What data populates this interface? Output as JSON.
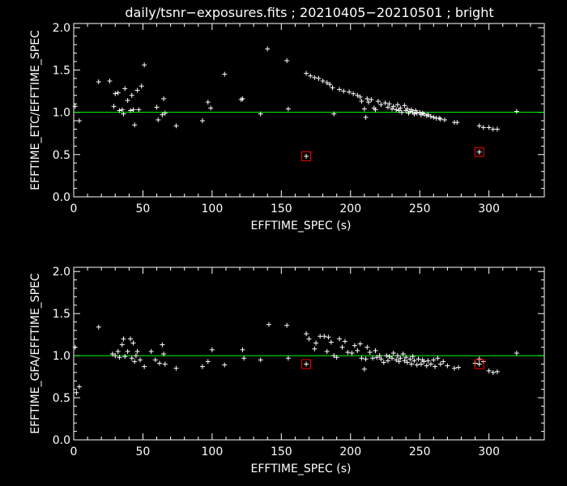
{
  "title": "daily/tsnr−exposures.fits ; 20210405−20210501 ; bright",
  "colors": {
    "background": "#000000",
    "points": "#ffffff",
    "reference_line": "#00ff00",
    "highlight": "#ff0000"
  },
  "chart_data": [
    {
      "type": "scatter",
      "xlabel": "EFFTIME_SPEC (s)",
      "ylabel": "EFFTIME_ETC/EFFTIME_SPEC",
      "xlim": [
        0,
        340
      ],
      "ylim": [
        0,
        2.05
      ],
      "xticks": [
        "0",
        "50",
        "100",
        "150",
        "200",
        "250",
        "300"
      ],
      "yticks": [
        "0.0",
        "0.5",
        "1.0",
        "1.5",
        "2.0"
      ],
      "reference_y": 1.0,
      "points": [
        [
          1,
          1.07
        ],
        [
          4,
          0.9
        ],
        [
          18,
          1.36
        ],
        [
          26,
          1.37
        ],
        [
          29,
          1.07
        ],
        [
          30,
          1.22
        ],
        [
          32,
          1.23
        ],
        [
          33,
          1.02
        ],
        [
          35,
          1.03
        ],
        [
          36,
          0.98
        ],
        [
          37,
          1.28
        ],
        [
          39,
          1.14
        ],
        [
          41,
          1.02
        ],
        [
          42,
          1.2
        ],
        [
          43,
          1.03
        ],
        [
          44,
          0.85
        ],
        [
          46,
          1.26
        ],
        [
          47,
          1.03
        ],
        [
          49,
          1.31
        ],
        [
          51,
          1.56
        ],
        [
          60,
          1.06
        ],
        [
          61,
          0.91
        ],
        [
          64,
          0.97
        ],
        [
          65,
          1.16
        ],
        [
          66,
          0.99
        ],
        [
          74,
          0.84
        ],
        [
          93,
          0.9
        ],
        [
          97,
          1.12
        ],
        [
          99,
          1.05
        ],
        [
          109,
          1.45
        ],
        [
          121,
          1.15
        ],
        [
          122,
          1.16
        ],
        [
          135,
          0.98
        ],
        [
          140,
          1.75
        ],
        [
          154,
          1.61
        ],
        [
          155,
          1.04
        ],
        [
          168,
          1.46
        ],
        [
          171,
          1.43
        ],
        [
          174,
          1.41
        ],
        [
          177,
          1.4
        ],
        [
          180,
          1.37
        ],
        [
          183,
          1.35
        ],
        [
          185,
          1.33
        ],
        [
          187,
          1.29
        ],
        [
          188,
          0.98
        ],
        [
          192,
          1.27
        ],
        [
          195,
          1.25
        ],
        [
          199,
          1.24
        ],
        [
          202,
          1.22
        ],
        [
          205,
          1.2
        ],
        [
          207,
          1.18
        ],
        [
          208,
          1.13
        ],
        [
          210,
          1.04
        ],
        [
          211,
          0.94
        ],
        [
          212,
          1.16
        ],
        [
          213,
          1.12
        ],
        [
          215,
          1.15
        ],
        [
          217,
          1.05
        ],
        [
          218,
          1.03
        ],
        [
          220,
          1.13
        ],
        [
          222,
          1.09
        ],
        [
          225,
          1.11
        ],
        [
          227,
          1.06
        ],
        [
          228,
          1.1
        ],
        [
          230,
          1.04
        ],
        [
          231,
          1.07
        ],
        [
          233,
          1.03
        ],
        [
          234,
          1.09
        ],
        [
          235,
          1.02
        ],
        [
          236,
          1.05
        ],
        [
          237,
          1.0
        ],
        [
          239,
          1.08
        ],
        [
          240,
          1.02
        ],
        [
          241,
          1.04
        ],
        [
          242,
          0.99
        ],
        [
          243,
          1.01
        ],
        [
          244,
          1.03
        ],
        [
          245,
          1.0
        ],
        [
          246,
          0.98
        ],
        [
          247,
          1.02
        ],
        [
          248,
          0.99
        ],
        [
          250,
          1.0
        ],
        [
          251,
          0.97
        ],
        [
          252,
          0.99
        ],
        [
          253,
          0.98
        ],
        [
          255,
          0.96
        ],
        [
          256,
          0.97
        ],
        [
          258,
          0.95
        ],
        [
          260,
          0.94
        ],
        [
          262,
          0.93
        ],
        [
          264,
          0.93
        ],
        [
          265,
          0.92
        ],
        [
          268,
          0.91
        ],
        [
          275,
          0.88
        ],
        [
          277,
          0.88
        ],
        [
          293,
          0.84
        ],
        [
          296,
          0.82
        ],
        [
          300,
          0.82
        ],
        [
          303,
          0.8
        ],
        [
          306,
          0.8
        ],
        [
          320,
          1.01
        ],
        [
          168,
          0.48
        ],
        [
          293,
          0.53
        ]
      ],
      "highlighted": [
        [
          168,
          0.48
        ],
        [
          293,
          0.53
        ]
      ]
    },
    {
      "type": "scatter",
      "xlabel": "EFFTIME_SPEC (s)",
      "ylabel": "EFFTIME_GFA/EFFTIME_SPEC",
      "xlim": [
        0,
        340
      ],
      "ylim": [
        0,
        2.05
      ],
      "xticks": [
        "0",
        "50",
        "100",
        "150",
        "200",
        "250",
        "300"
      ],
      "yticks": [
        "0.0",
        "0.5",
        "1.0",
        "1.5",
        "2.0"
      ],
      "reference_y": 1.0,
      "points": [
        [
          1,
          1.1
        ],
        [
          2,
          0.56
        ],
        [
          4,
          0.63
        ],
        [
          18,
          1.34
        ],
        [
          28,
          1.02
        ],
        [
          30,
          1.0
        ],
        [
          32,
          1.05
        ],
        [
          33,
          0.98
        ],
        [
          35,
          1.13
        ],
        [
          36,
          1.2
        ],
        [
          37,
          0.99
        ],
        [
          39,
          1.05
        ],
        [
          41,
          1.2
        ],
        [
          42,
          0.97
        ],
        [
          43,
          1.15
        ],
        [
          44,
          0.93
        ],
        [
          45,
          1.0
        ],
        [
          46,
          1.05
        ],
        [
          48,
          0.95
        ],
        [
          51,
          0.87
        ],
        [
          56,
          1.05
        ],
        [
          59,
          0.95
        ],
        [
          62,
          0.91
        ],
        [
          64,
          1.13
        ],
        [
          65,
          1.02
        ],
        [
          66,
          0.9
        ],
        [
          74,
          0.85
        ],
        [
          93,
          0.87
        ],
        [
          97,
          0.93
        ],
        [
          100,
          1.07
        ],
        [
          109,
          0.89
        ],
        [
          122,
          1.07
        ],
        [
          123,
          0.97
        ],
        [
          135,
          0.95
        ],
        [
          141,
          1.37
        ],
        [
          154,
          1.36
        ],
        [
          155,
          0.97
        ],
        [
          168,
          1.26
        ],
        [
          170,
          1.2
        ],
        [
          174,
          1.08
        ],
        [
          175,
          1.15
        ],
        [
          178,
          1.23
        ],
        [
          181,
          1.23
        ],
        [
          183,
          1.05
        ],
        [
          184,
          1.22
        ],
        [
          186,
          1.16
        ],
        [
          188,
          1.0
        ],
        [
          190,
          0.98
        ],
        [
          192,
          1.2
        ],
        [
          194,
          1.1
        ],
        [
          196,
          1.17
        ],
        [
          198,
          1.04
        ],
        [
          201,
          1.03
        ],
        [
          203,
          1.12
        ],
        [
          205,
          1.06
        ],
        [
          207,
          1.14
        ],
        [
          208,
          0.97
        ],
        [
          210,
          0.84
        ],
        [
          211,
          0.96
        ],
        [
          212,
          1.1
        ],
        [
          214,
          1.04
        ],
        [
          216,
          0.97
        ],
        [
          218,
          1.06
        ],
        [
          219,
          0.98
        ],
        [
          221,
          1.0
        ],
        [
          222,
          0.96
        ],
        [
          224,
          0.92
        ],
        [
          226,
          1.0
        ],
        [
          227,
          0.94
        ],
        [
          228,
          0.99
        ],
        [
          230,
          0.97
        ],
        [
          231,
          1.03
        ],
        [
          233,
          0.95
        ],
        [
          234,
          1.0
        ],
        [
          235,
          0.93
        ],
        [
          236,
          0.97
        ],
        [
          238,
          1.02
        ],
        [
          239,
          0.94
        ],
        [
          240,
          0.98
        ],
        [
          241,
          0.92
        ],
        [
          243,
          0.96
        ],
        [
          244,
          0.9
        ],
        [
          245,
          0.99
        ],
        [
          246,
          0.94
        ],
        [
          248,
          0.89
        ],
        [
          249,
          0.96
        ],
        [
          251,
          0.9
        ],
        [
          252,
          0.95
        ],
        [
          253,
          0.93
        ],
        [
          255,
          0.88
        ],
        [
          256,
          0.94
        ],
        [
          258,
          0.9
        ],
        [
          260,
          0.95
        ],
        [
          261,
          0.87
        ],
        [
          263,
          0.97
        ],
        [
          265,
          0.9
        ],
        [
          267,
          0.93
        ],
        [
          270,
          0.88
        ],
        [
          275,
          0.85
        ],
        [
          278,
          0.86
        ],
        [
          290,
          0.91
        ],
        [
          293,
          0.96
        ],
        [
          296,
          0.93
        ],
        [
          300,
          0.82
        ],
        [
          303,
          0.8
        ],
        [
          306,
          0.81
        ],
        [
          320,
          1.03
        ],
        [
          168,
          0.9
        ],
        [
          293,
          0.9
        ]
      ],
      "highlighted": [
        [
          168,
          0.9
        ],
        [
          293,
          0.9
        ]
      ]
    }
  ]
}
